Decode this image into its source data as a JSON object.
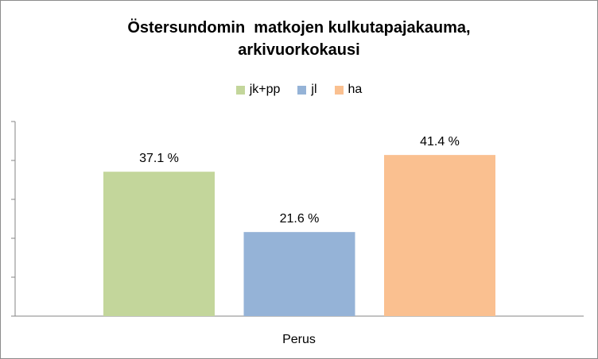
{
  "chart_data": {
    "type": "bar",
    "title_line1": "Östersundomin  matkojen kulkutapajakauma,",
    "title_line2": "arkivuorkokausi",
    "categories": [
      "Perus"
    ],
    "series": [
      {
        "name": "jk+pp",
        "value": 37.1,
        "label": "37.1 %",
        "color": "#c3d69b"
      },
      {
        "name": "jl",
        "value": 21.6,
        "label": "21.6 %",
        "color": "#95b3d7"
      },
      {
        "name": "ha",
        "value": 41.4,
        "label": "41.4 %",
        "color": "#fac090"
      }
    ],
    "ylim": [
      0,
      50
    ],
    "y_ticks": [
      0,
      10,
      20,
      30,
      40,
      50
    ],
    "y_tick_labels_visible": false,
    "legend_position": "top",
    "grid": false
  }
}
